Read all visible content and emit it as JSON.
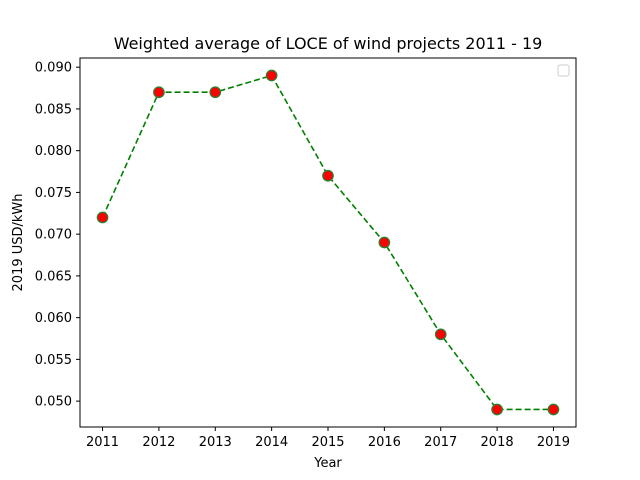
{
  "chart_data": {
    "type": "line",
    "title": "Weighted average of LOCE of wind projects 2011 - 19",
    "xlabel": "Year",
    "ylabel": "2019 USD/kWh",
    "x": [
      2011,
      2012,
      2013,
      2014,
      2015,
      2016,
      2017,
      2018,
      2019
    ],
    "series": [
      {
        "values": [
          0.072,
          0.087,
          0.087,
          0.089,
          0.077,
          0.069,
          0.058,
          0.049,
          0.049
        ],
        "line_color": "#008000",
        "line_style": "dashed",
        "marker": "circle",
        "marker_fill": "#ff0000",
        "marker_edge": "#2e7d32"
      }
    ],
    "xticks": [
      "2011",
      "2012",
      "2013",
      "2014",
      "2015",
      "2016",
      "2017",
      "2018",
      "2019"
    ],
    "yticks": [
      "0.050",
      "0.055",
      "0.060",
      "0.065",
      "0.070",
      "0.075",
      "0.080",
      "0.085",
      "0.090"
    ],
    "ytick_values": [
      0.05,
      0.055,
      0.06,
      0.065,
      0.07,
      0.075,
      0.08,
      0.085,
      0.09
    ],
    "xlim": [
      2010.6,
      2019.4
    ],
    "ylim": [
      0.0469,
      0.0911
    ],
    "grid": false,
    "legend": "upper-right (empty)"
  }
}
